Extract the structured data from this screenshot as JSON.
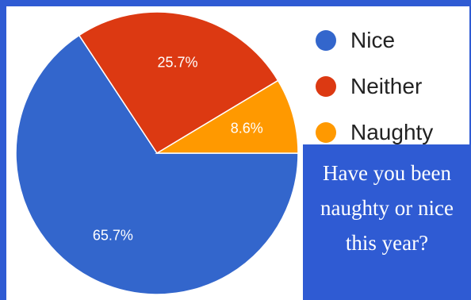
{
  "chart_data": {
    "type": "pie",
    "categories": [
      "Nice",
      "Neither",
      "Naughty"
    ],
    "values": [
      65.7,
      25.7,
      8.6
    ],
    "value_labels": [
      "65.7%",
      "25.7%",
      "8.6%"
    ],
    "colors": [
      "#3366cc",
      "#dc3912",
      "#ff9900"
    ],
    "legend_position": "right"
  },
  "legend": {
    "items": [
      {
        "label": "Nice",
        "color": "#3366cc"
      },
      {
        "label": "Neither",
        "color": "#dc3912"
      },
      {
        "label": "Naughty",
        "color": "#ff9900"
      }
    ]
  },
  "question": {
    "text": "Have you been naughty or nice this year?"
  },
  "colors": {
    "frame": "#2f5bd3",
    "background": "#ffffff",
    "label_text": "#ffffff"
  }
}
